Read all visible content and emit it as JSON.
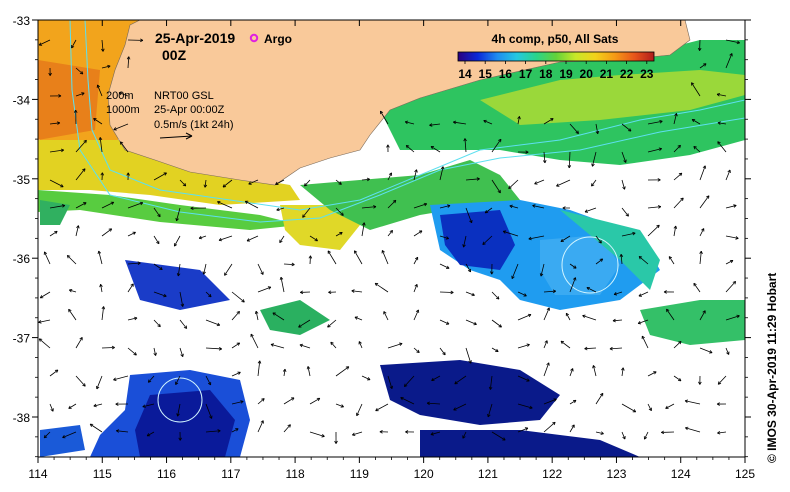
{
  "header": {
    "date": "25-Apr-2019",
    "time": "00Z",
    "argo_label": "Argo",
    "argo_color": "#e020e0"
  },
  "legend": {
    "depth_200": "200m",
    "depth_1000": "1000m",
    "product": "NRT00 GSL",
    "valid_time": "25-Apr 00:00Z",
    "vector_scale": "0.5m/s (1kt 24h)"
  },
  "colorbar": {
    "title": "4h comp, p50, All Sats",
    "ticks": [
      "14",
      "15",
      "16",
      "17",
      "18",
      "19",
      "20",
      "21",
      "22",
      "23"
    ],
    "colors": [
      "#2a007f",
      "#0a28d8",
      "#1f8cf0",
      "#25c8e0",
      "#2ad48a",
      "#62d23a",
      "#c8e828",
      "#f2d21a",
      "#f59a16",
      "#e8551a",
      "#b01c1c"
    ]
  },
  "axes": {
    "lon_ticks": [
      "114",
      "115",
      "116",
      "117",
      "118",
      "119",
      "120",
      "121",
      "122",
      "123",
      "124",
      "125"
    ],
    "lat_ticks": [
      "-33",
      "-34",
      "-35",
      "-36",
      "-37",
      "-38"
    ]
  },
  "credit": "© IMOS 30-Apr-2019 11:29 Hobart",
  "colors": {
    "land": "#f9c99a",
    "isobath": "#5de0f0",
    "vectors": "#000000",
    "frame": "#000000"
  }
}
